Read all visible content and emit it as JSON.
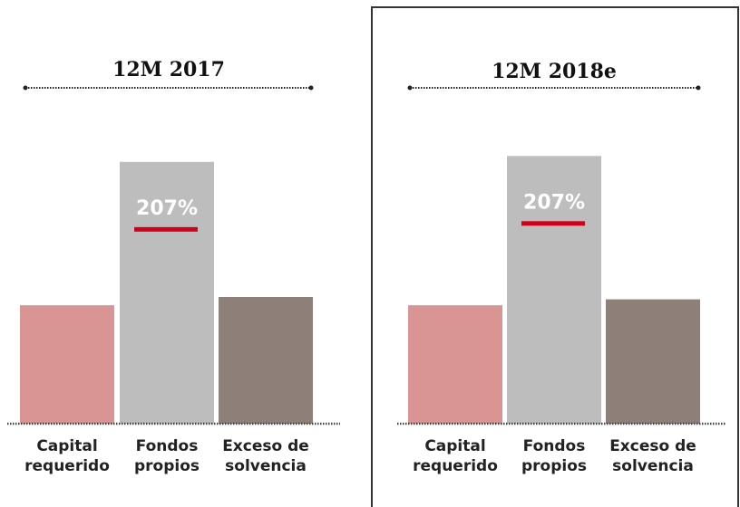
{
  "chart_data": [
    {
      "type": "bar",
      "title": "12M 2017",
      "annotation": "207%",
      "categories": [
        [
          "Capital",
          "requerido"
        ],
        [
          "Fondos",
          "propios"
        ],
        [
          "Exceso de",
          "solvencia"
        ]
      ],
      "values": [
        100,
        221,
        107
      ],
      "colors": [
        "#d89593",
        "#bdbdbd",
        "#8e7f79"
      ],
      "annotation_color": "#d0021b",
      "ylim": [
        0,
        240
      ]
    },
    {
      "type": "bar",
      "title": "12M 2018e",
      "annotation": "207%",
      "categories": [
        [
          "Capital",
          "requerido"
        ],
        [
          "Fondos",
          "propios"
        ],
        [
          "Exceso de",
          "solvencia"
        ]
      ],
      "values": [
        100,
        226,
        105
      ],
      "colors": [
        "#d89593",
        "#bdbdbd",
        "#8e7f79"
      ],
      "annotation_color": "#d0021b",
      "ylim": [
        0,
        240
      ]
    }
  ]
}
